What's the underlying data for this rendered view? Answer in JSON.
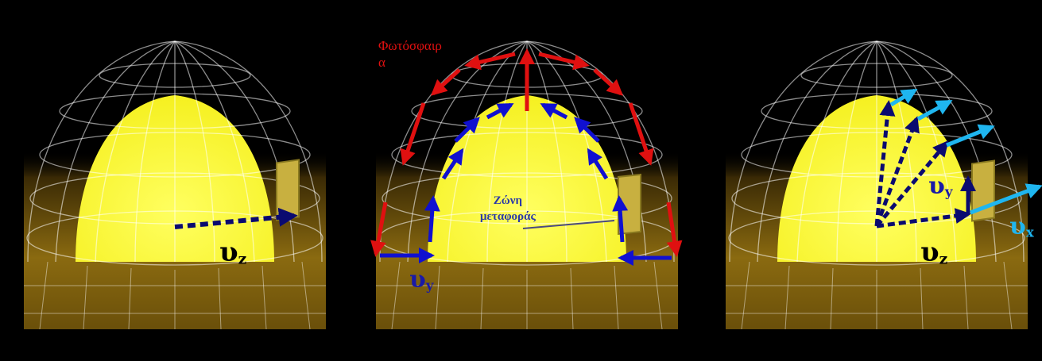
{
  "panels": [
    {
      "id": "left",
      "vz_symbol": "υ",
      "vz_sub": "z"
    },
    {
      "id": "middle",
      "vy_symbol": "υ",
      "vy_sub": "y",
      "photosphere_line1": "Φωτόσφαιρ",
      "photosphere_line2": "α",
      "zone_line1": "Ζώνη",
      "zone_line2": "μεταφοράς"
    },
    {
      "id": "right",
      "vy_symbol": "υ",
      "vy_sub": "y",
      "vz_symbol": "υ",
      "vz_sub": "z",
      "vx_symbol": "υ",
      "vx_sub": "x"
    }
  ],
  "colors": {
    "background": "#000000",
    "sun": "#ffff33",
    "ground": "#8a6a10",
    "grid": "#ffffff",
    "photosphere_arrows": "#e01010",
    "convection_arrows": "#1010d0",
    "velocity_arrows": "#0a0a70",
    "vx_arrows": "#1fb6f0"
  },
  "icons": [
    "satellite-icon"
  ]
}
